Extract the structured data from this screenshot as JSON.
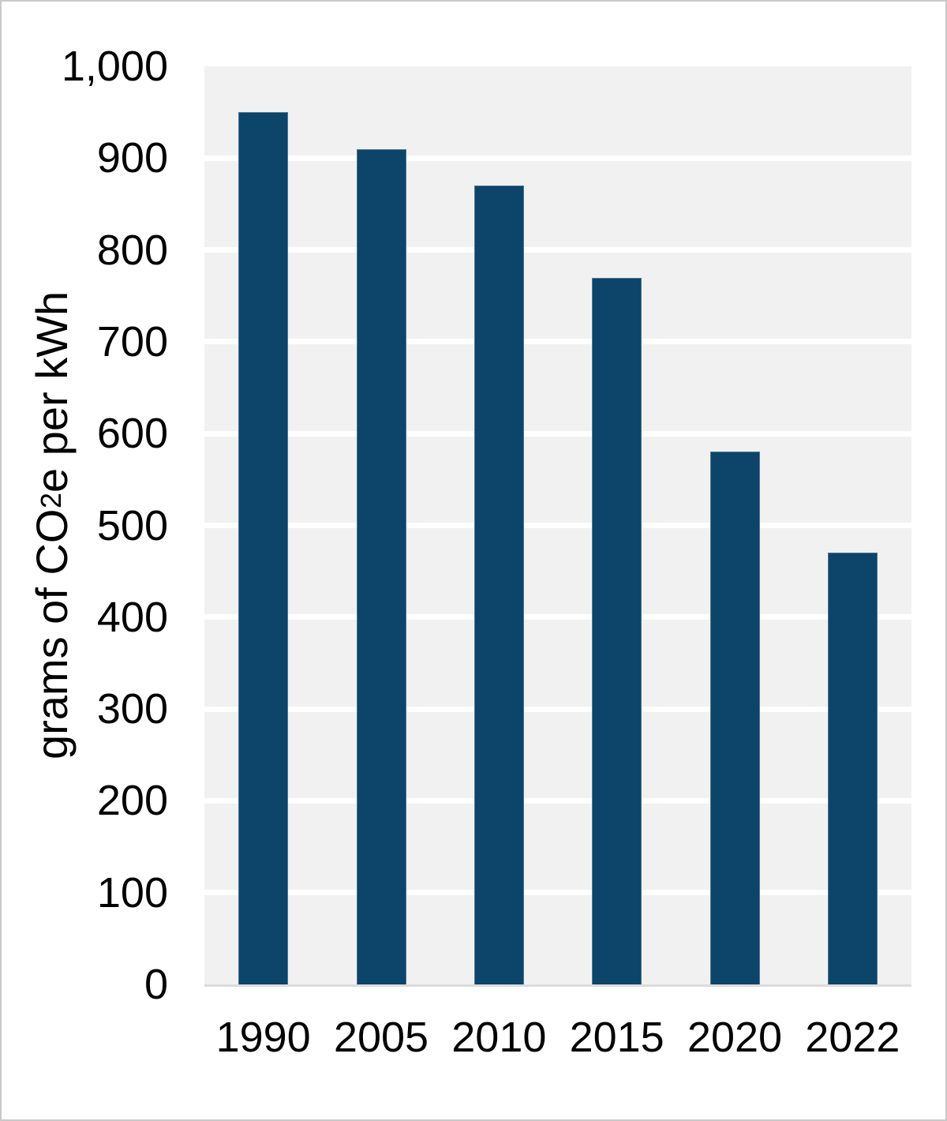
{
  "chart_data": {
    "type": "bar",
    "title": "",
    "categories": [
      "1990",
      "2005",
      "2010",
      "2015",
      "2020",
      "2022"
    ],
    "values": [
      950,
      910,
      870,
      770,
      580,
      470
    ],
    "xlabel": "",
    "ylabel": {
      "prefix": "grams of CO",
      "subscript": "2",
      "suffix": "e per kWh"
    },
    "ylim": [
      0,
      1000
    ],
    "y_ticks": [
      {
        "label": "0",
        "value": 0
      },
      {
        "label": "100",
        "value": 100
      },
      {
        "label": "200",
        "value": 200
      },
      {
        "label": "300",
        "value": 300
      },
      {
        "label": "400",
        "value": 400
      },
      {
        "label": "500",
        "value": 500
      },
      {
        "label": "600",
        "value": 600
      },
      {
        "label": "700",
        "value": 700
      },
      {
        "label": "800",
        "value": 800
      },
      {
        "label": "900",
        "value": 900
      },
      {
        "label": "1,000",
        "value": 1000
      }
    ],
    "grid": "horizontal-only",
    "legend": "none",
    "colors": {
      "bar_fill": "#0d4469",
      "bar_border": "#4c7795",
      "plot_background": "#f1f1f1",
      "gridline": "#ffffff",
      "axis_line": "#dcdcdc",
      "text": "#000000",
      "page_border": "#c9c9c9",
      "page_background": "#ffffff"
    }
  }
}
